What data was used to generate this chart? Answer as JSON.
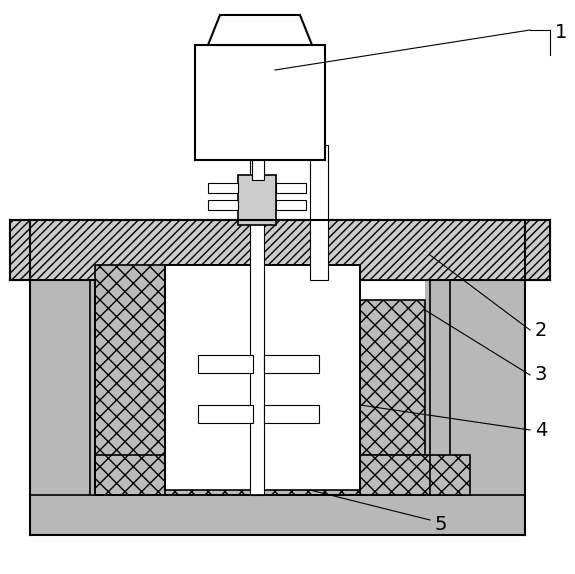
{
  "bg_color": "#ffffff",
  "lc": "#000000",
  "gray_outer": "#b0b0b0",
  "gray_inner": "#c8c8c8",
  "gray_hatch_fill": "#aaaaaa",
  "white": "#ffffff",
  "fig_width": 5.75,
  "fig_height": 5.74,
  "dpi": 100
}
